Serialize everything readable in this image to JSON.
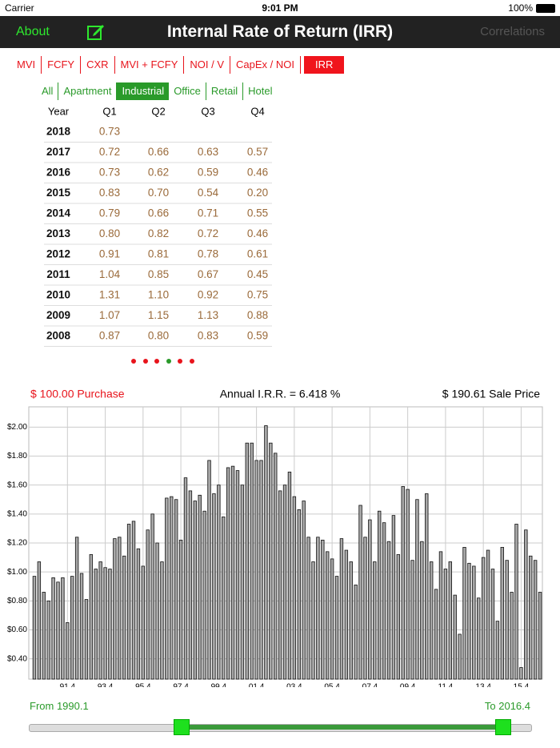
{
  "status_bar": {
    "carrier": "Carrier",
    "time": "9:01 PM",
    "battery": "100%"
  },
  "nav": {
    "left": "About",
    "title": "Internal Rate of Return (IRR)",
    "right": "Correlations"
  },
  "tabs": [
    "MVI",
    "FCFY",
    "CXR",
    "MVI + FCFY",
    "NOI / V",
    "CapEx / NOI",
    "IRR"
  ],
  "filters": [
    "All",
    "Apartment",
    "Industrial",
    "Office",
    "Retail",
    "Hotel"
  ],
  "table": {
    "header": [
      "Year",
      "Q1",
      "Q2",
      "Q3",
      "Q4"
    ],
    "rows": [
      [
        "2018",
        "0.73"
      ],
      [
        "2017",
        "0.72",
        "0.66",
        "0.63",
        "0.57"
      ],
      [
        "2016",
        "0.73",
        "0.62",
        "0.59",
        "0.46"
      ],
      [
        "2015",
        "0.83",
        "0.70",
        "0.54",
        "0.20"
      ],
      [
        "2014",
        "0.79",
        "0.66",
        "0.71",
        "0.55"
      ],
      [
        "2013",
        "0.80",
        "0.82",
        "0.72",
        "0.46"
      ],
      [
        "2012",
        "0.91",
        "0.81",
        "0.78",
        "0.61"
      ],
      [
        "2011",
        "1.04",
        "0.85",
        "0.67",
        "0.45"
      ],
      [
        "2010",
        "1.31",
        "1.10",
        "0.92",
        "0.75"
      ],
      [
        "2009",
        "1.07",
        "1.15",
        "1.13",
        "0.88"
      ],
      [
        "2008",
        "0.87",
        "0.80",
        "0.83",
        "0.59"
      ]
    ]
  },
  "chart_data": {
    "type": "bar",
    "purchase": "$ 100.00 Purchase",
    "title": "Annual I.R.R. = 6.418 %",
    "sale": "$ 190.61 Sale Price",
    "color": "#a8a8a8",
    "grid": true,
    "categories": [
      null,
      null,
      null,
      null,
      null,
      null,
      null,
      "91.4",
      null,
      null,
      null,
      null,
      null,
      null,
      null,
      "93.4",
      null,
      null,
      null,
      null,
      null,
      null,
      null,
      "95.4",
      null,
      null,
      null,
      null,
      null,
      null,
      null,
      "97.4",
      null,
      null,
      null,
      null,
      null,
      null,
      null,
      "99.4",
      null,
      null,
      null,
      null,
      null,
      null,
      null,
      "01.4",
      null,
      null,
      null,
      null,
      null,
      null,
      null,
      "03.4",
      null,
      null,
      null,
      null,
      null,
      null,
      null,
      "05.4",
      null,
      null,
      null,
      null,
      null,
      null,
      null,
      "07.4",
      null,
      null,
      null,
      null,
      null,
      null,
      null,
      "09.4",
      null,
      null,
      null,
      null,
      null,
      null,
      null,
      "11.4",
      null,
      null,
      null,
      null,
      null,
      null,
      null,
      "13.4",
      null,
      null,
      null,
      null,
      null,
      null,
      null,
      "15.4",
      null,
      null,
      null,
      null
    ],
    "values": [
      0.97,
      1.07,
      0.86,
      0.8,
      0.96,
      0.93,
      0.96,
      0.65,
      0.97,
      1.24,
      0.99,
      0.81,
      1.12,
      1.02,
      1.07,
      1.03,
      1.02,
      1.23,
      1.24,
      1.11,
      1.33,
      1.35,
      1.16,
      1.04,
      1.29,
      1.4,
      1.2,
      1.07,
      1.51,
      1.52,
      1.5,
      1.22,
      1.65,
      1.56,
      1.49,
      1.53,
      1.42,
      1.77,
      1.54,
      1.6,
      1.38,
      1.72,
      1.73,
      1.7,
      1.6,
      1.89,
      1.89,
      1.77,
      1.77,
      2.01,
      1.89,
      1.82,
      1.56,
      1.6,
      1.69,
      1.52,
      1.43,
      1.49,
      1.24,
      1.07,
      1.24,
      1.22,
      1.14,
      1.09,
      0.97,
      1.23,
      1.15,
      1.07,
      0.91,
      1.46,
      1.24,
      1.36,
      1.07,
      1.42,
      1.34,
      1.21,
      1.39,
      1.12,
      1.59,
      1.57,
      1.08,
      1.5,
      1.21,
      1.54,
      1.07,
      0.88,
      1.14,
      1.02,
      1.07,
      0.84,
      0.57,
      1.17,
      1.06,
      1.04,
      0.82,
      1.1,
      1.15,
      1.02,
      0.66,
      1.17,
      1.08,
      0.86,
      1.33,
      0.34,
      1.29,
      1.11,
      1.08,
      0.86
    ],
    "ylim": [
      0.26,
      2.14
    ],
    "yticks": [
      {
        "value": 0.4,
        "label": "$0.40"
      },
      {
        "value": 0.6,
        "label": "$0.60"
      },
      {
        "value": 0.8,
        "label": "$0.80"
      },
      {
        "value": 1.0,
        "label": "$1.00"
      },
      {
        "value": 1.2,
        "label": "$1.20"
      },
      {
        "value": 1.4,
        "label": "$1.40"
      },
      {
        "value": 1.6,
        "label": "$1.60"
      },
      {
        "value": 1.8,
        "label": "$1.80"
      },
      {
        "value": 2.0,
        "label": "$2.00"
      }
    ]
  },
  "range": {
    "from": "From 1990.1",
    "to": "To 2016.4"
  }
}
